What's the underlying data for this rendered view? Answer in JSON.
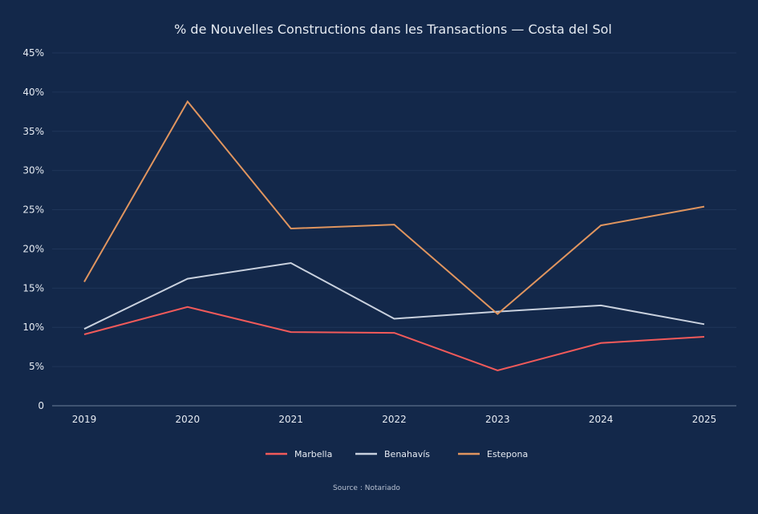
{
  "chart_data": {
    "type": "line",
    "title": "% de Nouvelles Constructions dans les Transactions — Costa del Sol",
    "x": [
      "2019",
      "2020",
      "2021",
      "2022",
      "2023",
      "2024",
      "2025"
    ],
    "yticks": [
      "0",
      "5%",
      "10%",
      "15%",
      "20%",
      "25%",
      "30%",
      "35%",
      "40%",
      "45%"
    ],
    "ylim": [
      0,
      45
    ],
    "grid": true,
    "legend": "bottom",
    "series": [
      {
        "name": "Marbella",
        "color": "#f25a5a",
        "values": [
          9.1,
          12.6,
          9.4,
          9.3,
          4.5,
          8.0,
          8.8
        ]
      },
      {
        "name": "Benahavís",
        "color": "#c9d1de",
        "values": [
          9.8,
          16.2,
          18.2,
          11.1,
          12.0,
          12.8,
          10.4
        ]
      },
      {
        "name": "Estepona",
        "color": "#e0955f",
        "values": [
          15.8,
          38.8,
          22.6,
          23.1,
          11.7,
          23.0,
          25.4
        ]
      }
    ],
    "source": "Source : Notariado"
  }
}
